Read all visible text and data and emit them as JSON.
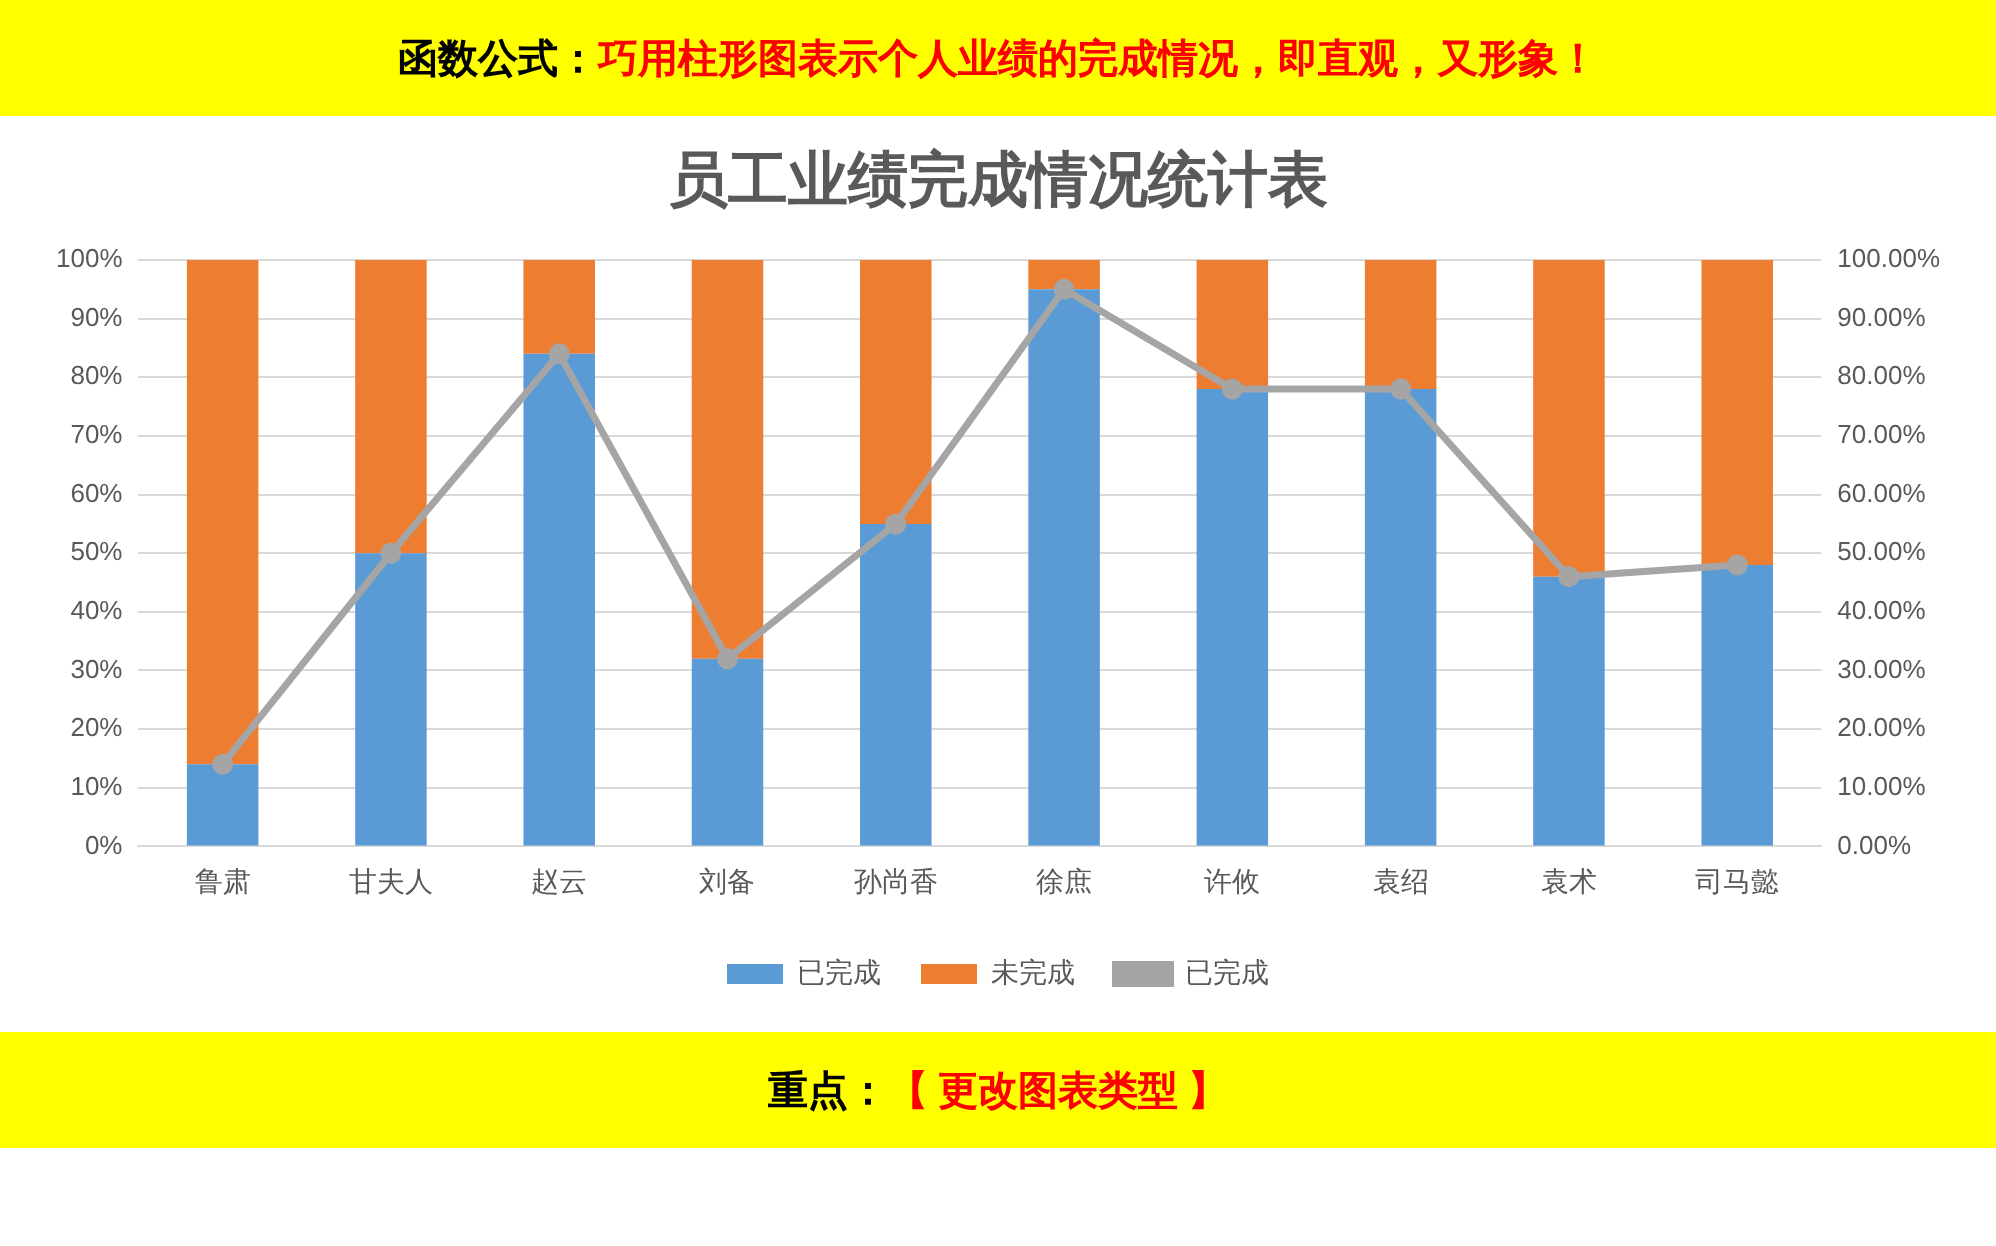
{
  "chart_data": {
    "type": "bar",
    "title": "员工业绩完成情况统计表",
    "annotations": [
      "函数公式：",
      "巧用柱形图表示个人业绩的完成情况，即直观，又形象！",
      "重点：",
      "【 更改图表类型 】"
    ],
    "categories": [
      "鲁肃",
      "甘夫人",
      "赵云",
      "刘备",
      "孙尚香",
      "徐庶",
      "许攸",
      "袁绍",
      "袁术",
      "司马懿"
    ],
    "stacked": true,
    "series": [
      {
        "name": "已完成",
        "color": "#5b9bd5",
        "values": [
          14,
          50,
          84,
          32,
          55,
          95,
          78,
          78,
          46,
          48
        ]
      },
      {
        "name": "未完成",
        "color": "#ed7d31",
        "values": [
          86,
          50,
          16,
          68,
          45,
          5,
          22,
          22,
          54,
          52
        ]
      },
      {
        "name": "已完成",
        "type": "line",
        "axis": "y2",
        "color": "#a5a5a5",
        "values": [
          14,
          50,
          84,
          32,
          55,
          95,
          78,
          78,
          46,
          48
        ]
      }
    ],
    "ylim": [
      0,
      100
    ],
    "yticks": [
      {
        "value": 0,
        "label": "0%"
      },
      {
        "value": 10,
        "label": "10%"
      },
      {
        "value": 20,
        "label": "20%"
      },
      {
        "value": 30,
        "label": "30%"
      },
      {
        "value": 40,
        "label": "40%"
      },
      {
        "value": 50,
        "label": "50%"
      },
      {
        "value": 60,
        "label": "60%"
      },
      {
        "value": 70,
        "label": "70%"
      },
      {
        "value": 80,
        "label": "80%"
      },
      {
        "value": 90,
        "label": "90%"
      },
      {
        "value": 100,
        "label": "100%"
      }
    ],
    "y2lim": [
      0,
      100
    ],
    "y2ticks": [
      {
        "value": 0,
        "label": "0.00%"
      },
      {
        "value": 10,
        "label": "10.00%"
      },
      {
        "value": 20,
        "label": "20.00%"
      },
      {
        "value": 30,
        "label": "30.00%"
      },
      {
        "value": 40,
        "label": "40.00%"
      },
      {
        "value": 50,
        "label": "50.00%"
      },
      {
        "value": 60,
        "label": "60.00%"
      },
      {
        "value": 70,
        "label": "70.00%"
      },
      {
        "value": 80,
        "label": "80.00%"
      },
      {
        "value": 90,
        "label": "90.00%"
      },
      {
        "value": 100,
        "label": "100.00%"
      }
    ],
    "grid": "y",
    "legend": "bottom",
    "marker": "circle",
    "line_style": "solid"
  }
}
